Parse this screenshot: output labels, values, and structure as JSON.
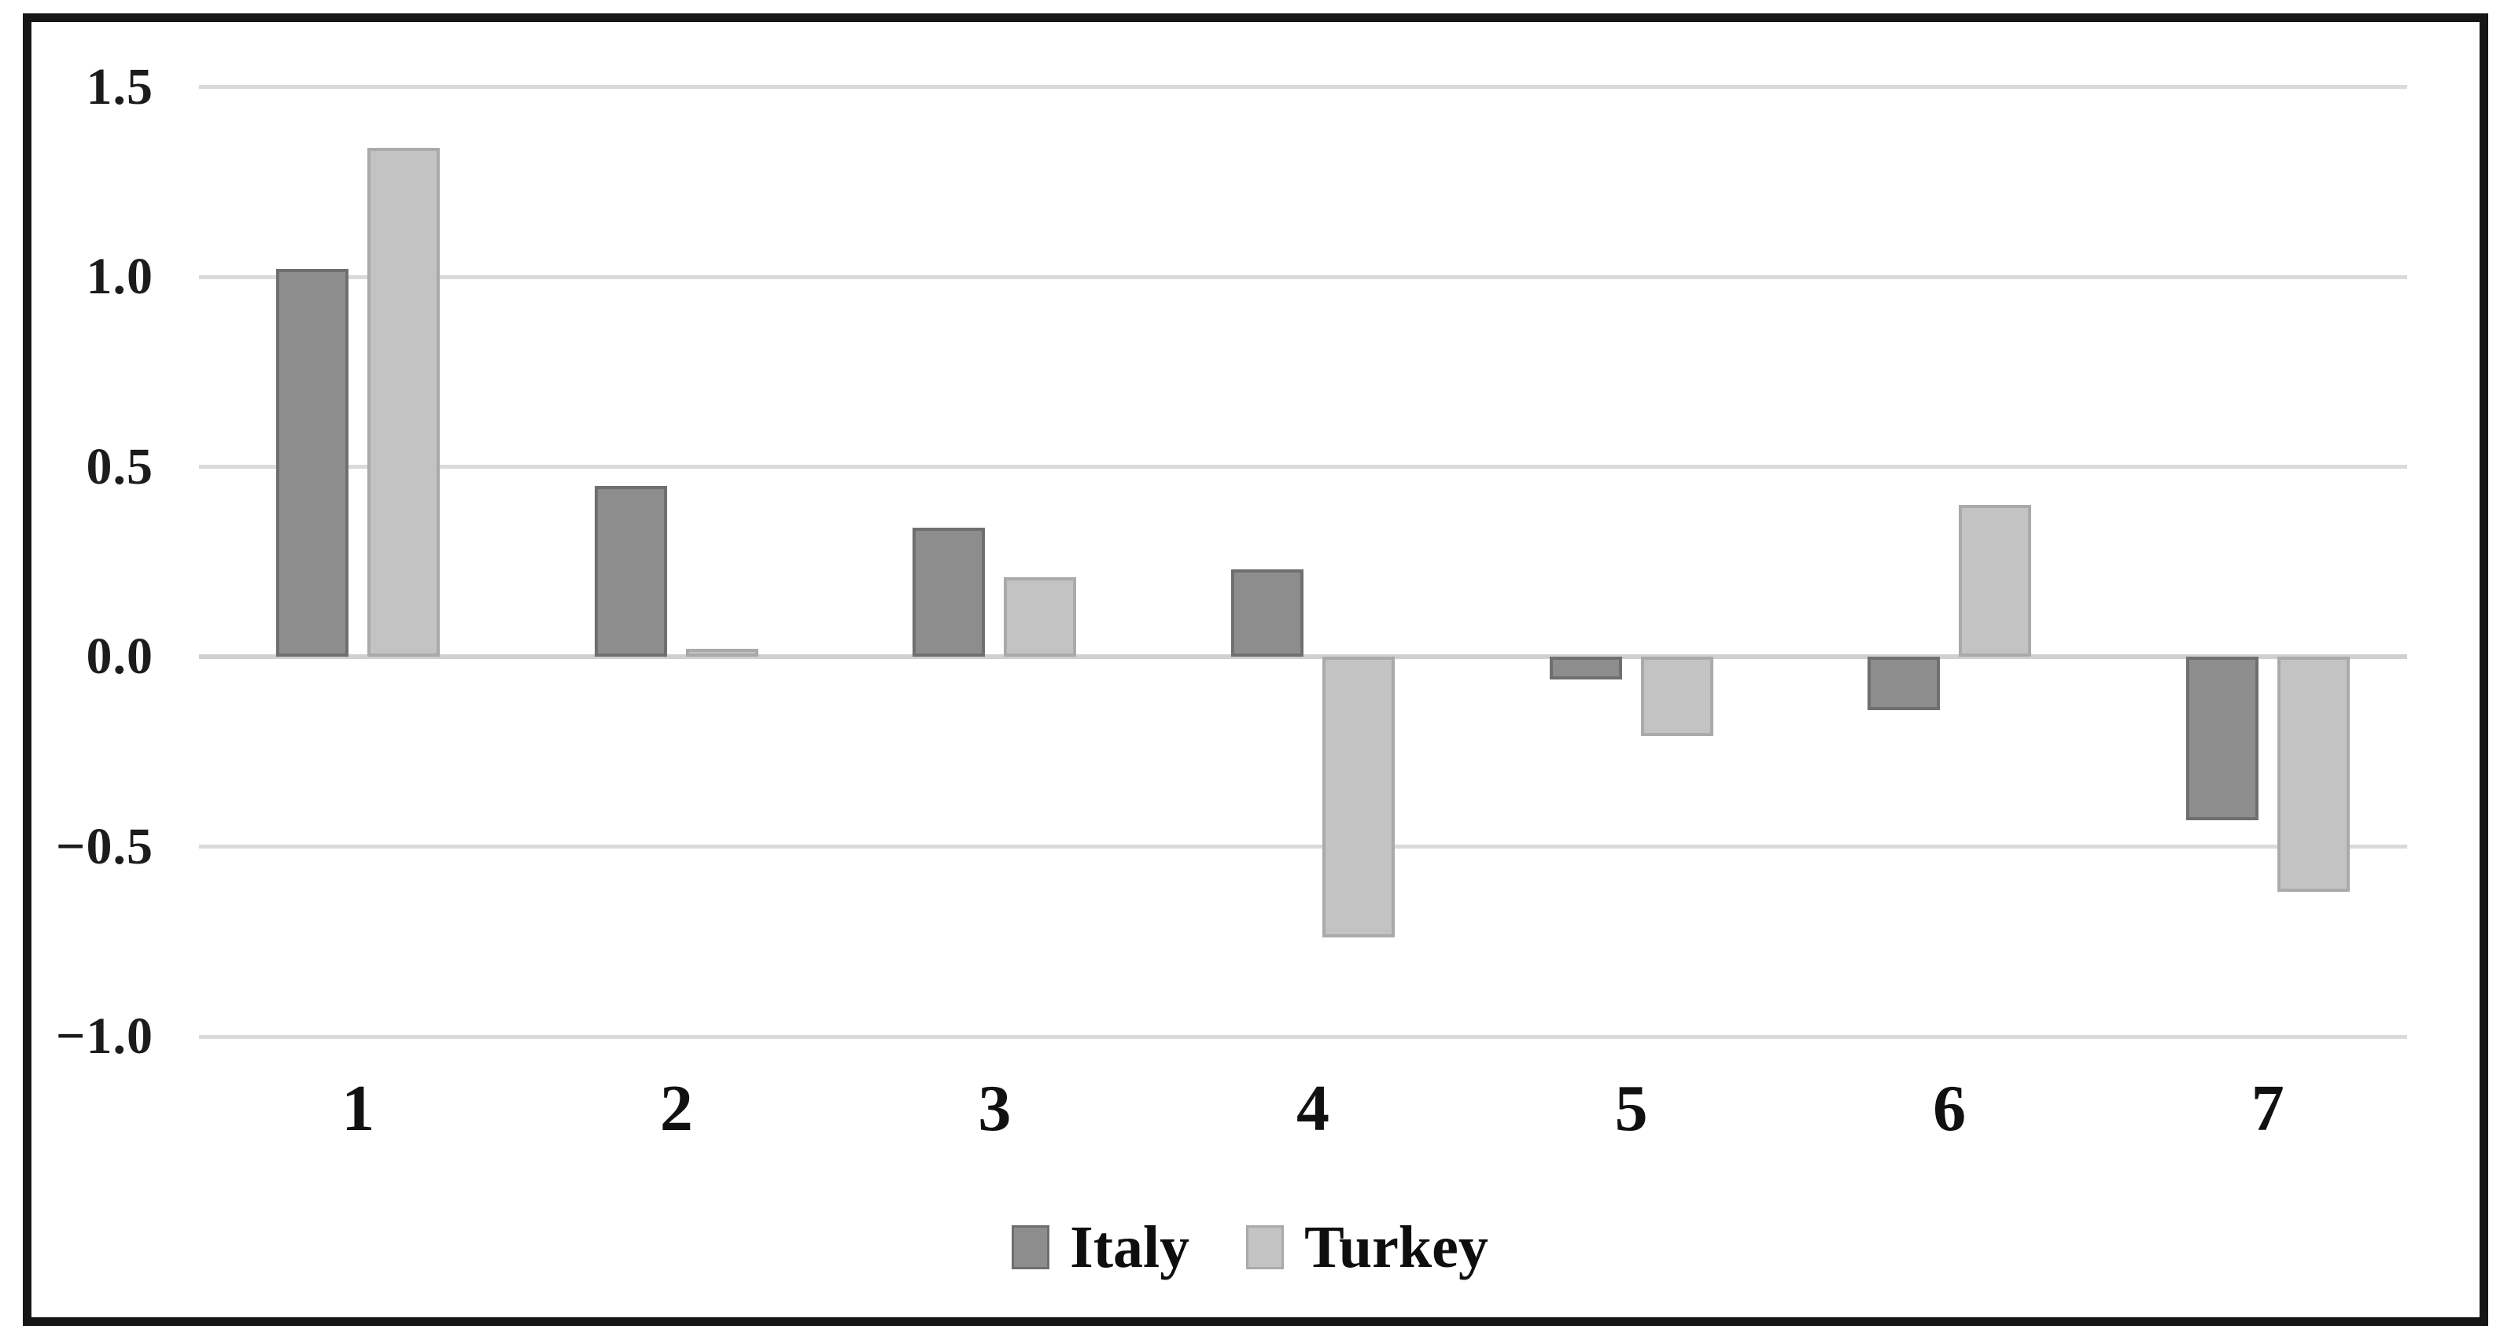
{
  "chart_data": {
    "type": "bar",
    "title": "",
    "xlabel": "",
    "ylabel": "",
    "categories": [
      "1",
      "2",
      "3",
      "4",
      "5",
      "6",
      "7"
    ],
    "series": [
      {
        "name": "Italy",
        "color": "#8d8d8d",
        "border_color": "#6f6f6f",
        "values": [
          1.02,
          0.45,
          0.34,
          0.23,
          -0.06,
          -0.14,
          -0.43
        ]
      },
      {
        "name": "Turkey",
        "color": "#c3c3c3",
        "border_color": "#aaaaaa",
        "values": [
          1.34,
          0.02,
          0.21,
          -0.74,
          -0.21,
          0.4,
          -0.62
        ]
      }
    ],
    "y_axis": {
      "range": [
        -1.0,
        1.5
      ],
      "tick_step": 0.5,
      "ticks": [
        {
          "value": 1.5,
          "label": "1.5"
        },
        {
          "value": 1.0,
          "label": "1.0"
        },
        {
          "value": 0.5,
          "label": "0.5"
        },
        {
          "value": 0.0,
          "label": "0.0"
        },
        {
          "value": -0.5,
          "label": "−0.5"
        },
        {
          "value": -1.0,
          "label": "−1.0"
        }
      ]
    },
    "grid": true,
    "legend": {
      "position": "bottom",
      "items": [
        "Italy",
        "Turkey"
      ]
    }
  },
  "frame": {
    "border_color": "#161616",
    "background": "#ffffff"
  },
  "colors": {
    "gridline": "#dadada",
    "zero_line": "#d0d0d0",
    "text": "#111111"
  }
}
